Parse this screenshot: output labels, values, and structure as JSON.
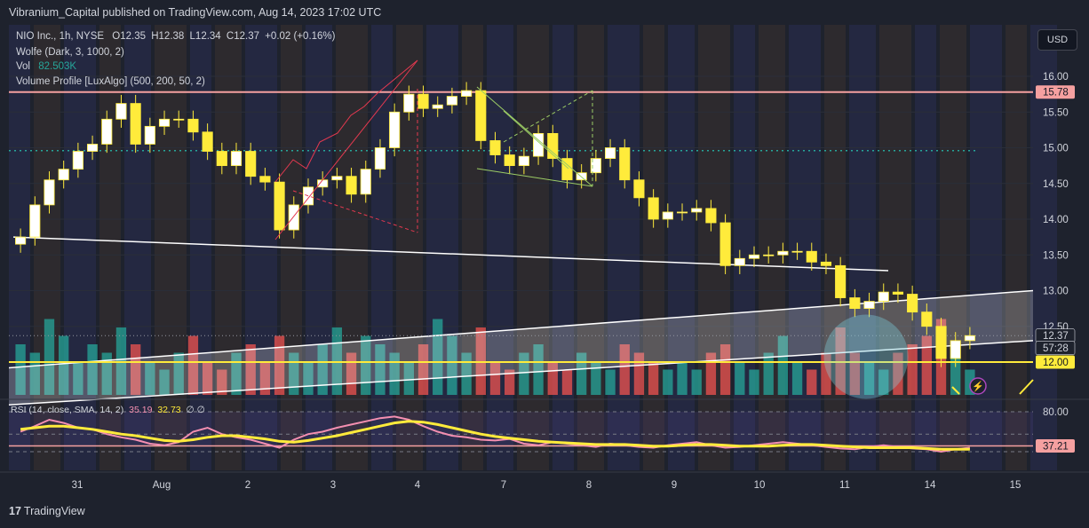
{
  "publisher_line": "Vibranium_Capital published on TradingView.com, Aug 14, 2023 17:02 UTC",
  "legend": {
    "symbol": "NIO Inc., 1h, NYSE",
    "o_label": "O",
    "o": "12.35",
    "h_label": "H",
    "h": "12.38",
    "l_label": "L",
    "l": "12.34",
    "c_label": "C",
    "c": "12.37",
    "change": "+0.02 (+0.16%)",
    "wolfe": "Wolfe (Dark, 3, 1000, 2)",
    "vol_label": "Vol",
    "vol": "82.503K",
    "volume_profile": "Volume Profile [LuxAlgo] (500, 200, 50, 2)"
  },
  "currency_button": "USD",
  "rsi_legend": {
    "name": "RSI (14, close, SMA, 14, 2)",
    "rsi": "35.19",
    "sma": "32.73",
    "extra": "∅ ∅"
  },
  "footer_brand": "TradingView",
  "colors": {
    "bg": "#1e222d",
    "candle": "#ffeb3b",
    "candle_down": "#ffeb3b",
    "vol_up": "#26a69a",
    "vol_down": "#ef5350",
    "resistance": "#f5a0a0",
    "support": "#ffeb3b",
    "rsi": "#f48fb1",
    "rsi_sma": "#ffeb3b",
    "circle": "#7fd7e6"
  },
  "icons": [
    "tradingview-logo-icon",
    "lightning-icon"
  ],
  "chart_data": {
    "type": "candlestick",
    "symbol": "NIO Inc.",
    "interval": "1h",
    "exchange": "NYSE",
    "x_ticks": [
      "31",
      "Aug",
      "2",
      "3",
      "4",
      "7",
      "8",
      "9",
      "10",
      "11",
      "14",
      "15"
    ],
    "y_ticks": [
      "16.00",
      "15.50",
      "15.00",
      "14.50",
      "14.00",
      "13.50",
      "13.00",
      "12.50",
      "12.00"
    ],
    "price_tags": [
      {
        "label": "15.78",
        "value": 15.78,
        "role": "resistance"
      },
      {
        "label": "12.37",
        "value": 12.37,
        "role": "last"
      },
      {
        "label": "57:28",
        "value": 12.37,
        "role": "countdown"
      },
      {
        "label": "12.00",
        "value": 12.0,
        "role": "support"
      }
    ],
    "dotted_level": 14.96,
    "closes": [
      13.75,
      14.2,
      14.55,
      14.7,
      14.95,
      15.05,
      15.4,
      15.62,
      15.05,
      15.3,
      15.4,
      15.4,
      15.22,
      14.95,
      14.75,
      14.95,
      14.6,
      14.52,
      13.85,
      14.2,
      14.45,
      14.55,
      14.6,
      14.35,
      14.7,
      15.0,
      15.5,
      15.75,
      15.55,
      15.6,
      15.72,
      15.8,
      15.1,
      14.9,
      14.75,
      14.88,
      15.2,
      14.85,
      14.55,
      14.65,
      14.85,
      15.0,
      14.55,
      14.3,
      14.0,
      14.1,
      14.1,
      14.15,
      13.95,
      13.35,
      13.45,
      13.5,
      13.5,
      13.55,
      13.55,
      13.4,
      13.35,
      12.9,
      12.75,
      12.85,
      12.98,
      12.95,
      12.7,
      12.5,
      12.05,
      12.3,
      12.37
    ],
    "volumes": [
      0.6,
      0.5,
      0.9,
      0.7,
      0.4,
      0.6,
      0.5,
      0.8,
      0.6,
      0.4,
      0.3,
      0.5,
      0.7,
      0.4,
      0.3,
      0.5,
      0.6,
      0.4,
      0.7,
      0.5,
      0.4,
      0.6,
      0.8,
      0.5,
      0.7,
      0.6,
      0.5,
      0.4,
      0.6,
      0.9,
      0.7,
      0.5,
      0.8,
      0.4,
      0.3,
      0.5,
      0.6,
      0.4,
      0.3,
      0.5,
      0.4,
      0.3,
      0.6,
      0.5,
      0.4,
      0.3,
      0.4,
      0.3,
      0.5,
      0.6,
      0.4,
      0.3,
      0.5,
      0.7,
      0.4,
      0.3,
      0.5,
      0.8,
      0.5,
      0.4,
      0.3,
      0.5,
      0.6,
      0.7,
      0.9,
      0.5,
      0.3
    ],
    "rsi_ticks": [
      "80.00",
      "37.21"
    ],
    "rsi_values": [
      55,
      62,
      70,
      66,
      60,
      58,
      52,
      48,
      45,
      40,
      38,
      42,
      55,
      60,
      52,
      48,
      45,
      40,
      35,
      45,
      52,
      55,
      60,
      64,
      68,
      72,
      74,
      70,
      62,
      55,
      50,
      48,
      45,
      44,
      46,
      40,
      38,
      42,
      40,
      38,
      36,
      40,
      38,
      36,
      35,
      38,
      40,
      42,
      38,
      35,
      36,
      38,
      40,
      42,
      40,
      38,
      36,
      34,
      33,
      36,
      38,
      36,
      34,
      33,
      30,
      33,
      35
    ],
    "rsi_sma_values": [
      58,
      60,
      62,
      62,
      60,
      58,
      55,
      52,
      50,
      47,
      44,
      43,
      45,
      48,
      50,
      50,
      48,
      46,
      43,
      42,
      44,
      47,
      50,
      54,
      58,
      62,
      66,
      68,
      67,
      64,
      60,
      56,
      52,
      49,
      47,
      45,
      43,
      42,
      41,
      40,
      39,
      39,
      39,
      38,
      37,
      37,
      38,
      39,
      39,
      38,
      37,
      37,
      37,
      38,
      39,
      39,
      38,
      37,
      36,
      35,
      35,
      35,
      35,
      34,
      33,
      33,
      33
    ],
    "rsi_ylim": [
      20,
      90
    ],
    "ylim": [
      11.5,
      16.3
    ]
  }
}
